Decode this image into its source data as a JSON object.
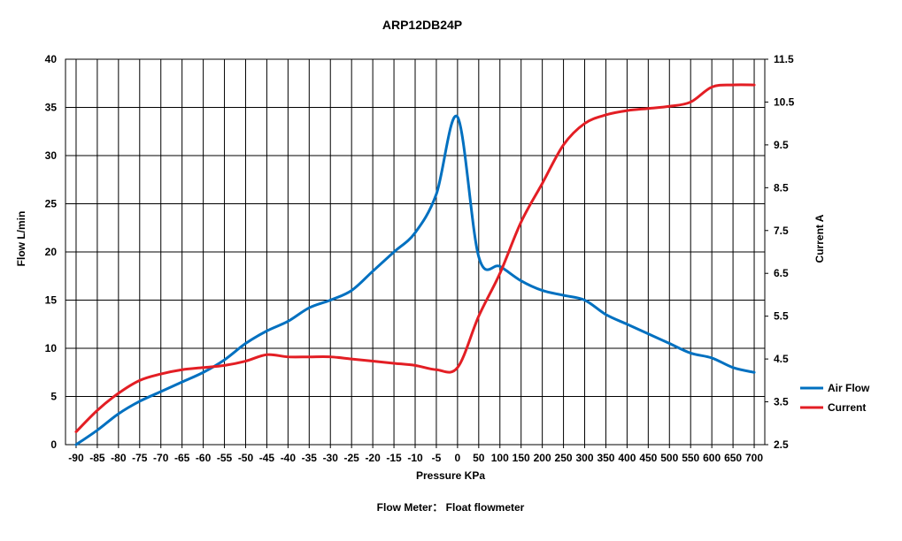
{
  "chart_data": {
    "type": "line",
    "title": "ARP12DB24P",
    "xlabel": "Pressure KPa",
    "ylabel_left": "Flow  L/min",
    "ylabel_right": "Current  A",
    "caption": "Flow Meter： Float flowmeter",
    "x_ticks": [
      "-90",
      "-85",
      "-80",
      "-75",
      "-70",
      "-65",
      "-60",
      "-55",
      "-50",
      "-45",
      "-40",
      "-35",
      "-30",
      "-25",
      "-20",
      "-15",
      "-10",
      "-5",
      "0",
      "50",
      "100",
      "150",
      "200",
      "250",
      "300",
      "350",
      "400",
      "450",
      "500",
      "550",
      "600",
      "650",
      "700"
    ],
    "y_left_ticks": [
      "0",
      "5",
      "10",
      "15",
      "20",
      "25",
      "30",
      "35",
      "40"
    ],
    "y_right_ticks": [
      "2.5",
      "3.5",
      "4.5",
      "5.5",
      "6.5",
      "7.5",
      "8.5",
      "9.5",
      "10.5",
      "11.5"
    ],
    "y_left_range": [
      0,
      40
    ],
    "y_right_range": [
      2.5,
      11.5
    ],
    "grid": true,
    "legend_position": "right",
    "series": [
      {
        "name": "Air Flow",
        "axis": "left",
        "color": "#0070C0",
        "x": [
          "-90",
          "-85",
          "-80",
          "-75",
          "-70",
          "-65",
          "-60",
          "-55",
          "-50",
          "-45",
          "-40",
          "-35",
          "-30",
          "-25",
          "-20",
          "-15",
          "-10",
          "-5",
          "0",
          "50",
          "100",
          "150",
          "200",
          "250",
          "300",
          "350",
          "400",
          "450",
          "500",
          "550",
          "600",
          "650",
          "700"
        ],
        "values": [
          0,
          1.5,
          3.2,
          4.5,
          5.5,
          6.5,
          7.5,
          8.8,
          10.5,
          11.8,
          12.8,
          14.2,
          15.0,
          16.0,
          18.0,
          20.0,
          22.0,
          26.0,
          34.0,
          19.5,
          18.5,
          17.0,
          16.0,
          15.5,
          15.0,
          13.5,
          12.5,
          11.5,
          10.5,
          9.5,
          9.0,
          8.0,
          7.5
        ]
      },
      {
        "name": "Current",
        "axis": "right",
        "color": "#E31E24",
        "x": [
          "-90",
          "-85",
          "-80",
          "-75",
          "-70",
          "-65",
          "-60",
          "-55",
          "-50",
          "-45",
          "-40",
          "-35",
          "-30",
          "-25",
          "-20",
          "-15",
          "-10",
          "-5",
          "0",
          "50",
          "100",
          "150",
          "200",
          "250",
          "300",
          "350",
          "400",
          "450",
          "500",
          "550",
          "600",
          "650",
          "700"
        ],
        "values": [
          2.8,
          3.3,
          3.7,
          4.0,
          4.15,
          4.25,
          4.3,
          4.35,
          4.45,
          4.6,
          4.55,
          4.55,
          4.55,
          4.5,
          4.45,
          4.4,
          4.35,
          4.25,
          4.3,
          5.5,
          6.5,
          7.7,
          8.6,
          9.5,
          10.0,
          10.2,
          10.3,
          10.35,
          10.4,
          10.5,
          10.85,
          10.9,
          10.9
        ]
      }
    ]
  }
}
